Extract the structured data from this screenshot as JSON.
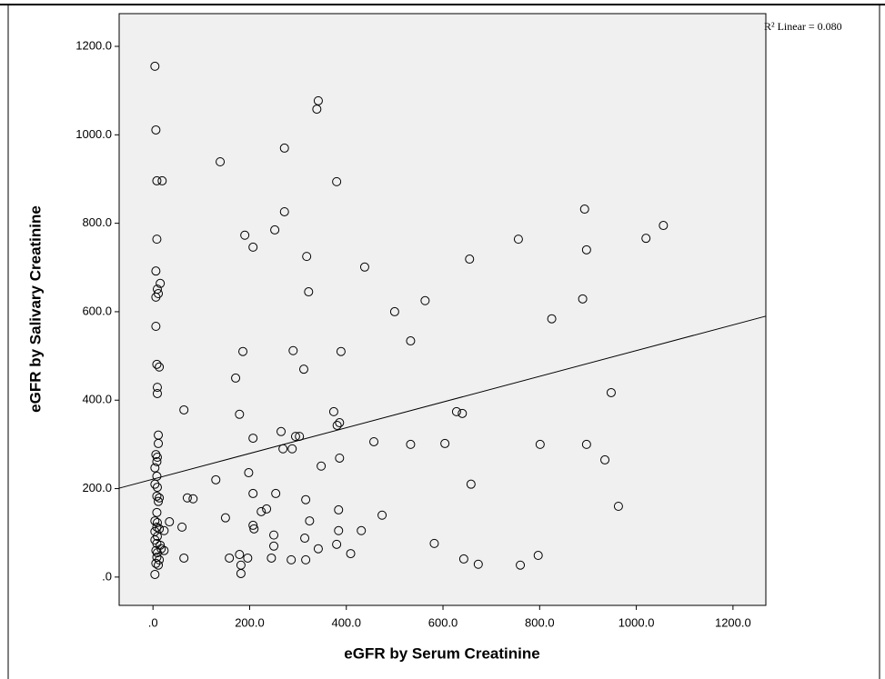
{
  "chart_data": {
    "type": "scatter",
    "x_label": "eGFR by Serum Creatinine",
    "y_label": "eGFR by Salivary Creatinine",
    "fit_label": "R² Linear = 0.080",
    "xlim": [
      -70,
      1268
    ],
    "ylim": [
      -64,
      1274
    ],
    "xticks": [
      {
        "value": 0,
        "label": ".0"
      },
      {
        "value": 200,
        "label": "200.0"
      },
      {
        "value": 400,
        "label": "400.0"
      },
      {
        "value": 600,
        "label": "600.0"
      },
      {
        "value": 800,
        "label": "800.0"
      },
      {
        "value": 1000,
        "label": "1000.0"
      },
      {
        "value": 1200,
        "label": "1200.0"
      }
    ],
    "yticks": [
      {
        "value": 0,
        "label": ".0"
      },
      {
        "value": 200,
        "label": "200.0"
      },
      {
        "value": 400,
        "label": "400.0"
      },
      {
        "value": 600,
        "label": "600.0"
      },
      {
        "value": 800,
        "label": "800.0"
      },
      {
        "value": 1000,
        "label": "1000.0"
      },
      {
        "value": 1200,
        "label": "1200.0"
      }
    ],
    "fit_line": {
      "x": [
        -70,
        1268
      ],
      "y": [
        201,
        590
      ],
      "color": "#000000"
    },
    "marker_color": "#000000",
    "background": "#f0f0f0",
    "series": [
      {
        "x": [
          4,
          6,
          8,
          19,
          8,
          6,
          9,
          15,
          11,
          6,
          6,
          8,
          13,
          9,
          9,
          11,
          11,
          6,
          9,
          8,
          4,
          8,
          4,
          9,
          8,
          13,
          11,
          8,
          4,
          9,
          8,
          13,
          4,
          9,
          4,
          8,
          15,
          6,
          9,
          17,
          8,
          13,
          6,
          11,
          4,
          23,
          23,
          34,
          60,
          64,
          64,
          71,
          83,
          130,
          150,
          158,
          179,
          182,
          182,
          196,
          190,
          207,
          139,
          198,
          207,
          207,
          207,
          209,
          171,
          186,
          179,
          235,
          254,
          252,
          272,
          272,
          265,
          269,
          250,
          250,
          245,
          224,
          290,
          288,
          295,
          303,
          286,
          318,
          322,
          312,
          316,
          324,
          314,
          316,
          339,
          342,
          348,
          342,
          374,
          381,
          386,
          380,
          389,
          386,
          384,
          384,
          380,
          409,
          431,
          438,
          457,
          474,
          500,
          533,
          533,
          563,
          582,
          604,
          628,
          640,
          655,
          658,
          643,
          673,
          756,
          760,
          801,
          797,
          825,
          893,
          889,
          897,
          897,
          948,
          935,
          963,
          1020,
          1056
        ],
        "y": [
          1155,
          1011,
          896,
          896,
          764,
          692,
          651,
          664,
          641,
          633,
          567,
          481,
          475,
          429,
          415,
          321,
          302,
          277,
          271,
          261,
          247,
          228,
          210,
          203,
          183,
          179,
          171,
          146,
          127,
          123,
          113,
          109,
          103,
          92,
          84,
          76,
          72,
          60,
          55,
          64,
          45,
          39,
          31,
          27,
          6,
          60,
          105,
          125,
          113,
          43,
          378,
          179,
          177,
          220,
          134,
          43,
          51,
          27,
          8,
          43,
          773,
          746,
          939,
          236,
          189,
          314,
          117,
          109,
          450,
          510,
          368,
          154,
          189,
          785,
          970,
          826,
          329,
          290,
          95,
          70,
          43,
          148,
          512,
          290,
          318,
          318,
          39,
          725,
          645,
          470,
          175,
          127,
          88,
          39,
          1058,
          1077,
          251,
          64,
          374,
          343,
          349,
          894,
          510,
          269,
          152,
          105,
          74,
          53,
          105,
          701,
          306,
          140,
          600,
          534,
          300,
          625,
          76,
          302,
          374,
          370,
          719,
          210,
          41,
          29,
          764,
          27,
          300,
          49,
          584,
          832,
          629,
          740,
          300,
          417,
          265,
          160,
          766,
          795
        ]
      }
    ]
  }
}
